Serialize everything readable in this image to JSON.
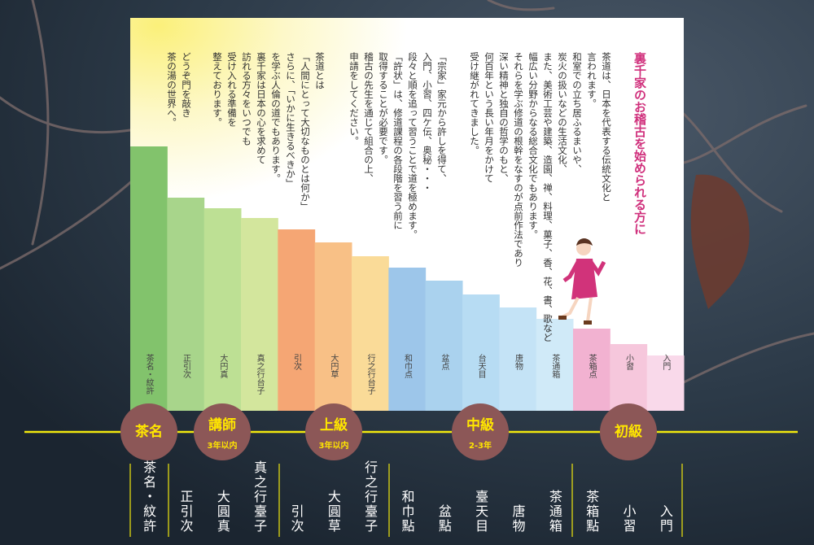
{
  "heading": "裏千家のお稽古を始められる方に",
  "paragraphs": [
    [
      "茶道は、日本を代表する伝統文化と",
      "言われます。",
      "和室での立ち居ふるまいや、",
      "炭火の扱いなどの生活文化、",
      "また、美術工芸や建築、造園、禅、料理、菓子、香、花、書、歌など",
      "幅広い分野からなる総合文化でもあります。",
      "それらを学ぶ修道の根幹をなすのが点前作法であり",
      "深い精神と独自の哲学のもと、",
      "何百年という長い年月をかけて",
      "受け継がれてきました。"
    ],
    [
      "「宗家」家元から許しを得て、",
      "入門、小習、四ケ伝、奥秘・・・",
      "段々と順を追って習うことで道を極めます。",
      "「許状」は、修道課程の各段階を習う前に",
      "取得することが必要です。",
      "稽古の先生を通じて組合の上、",
      "申請をしてください。"
    ],
    [
      "茶道とは",
      "「人間にとって大切なものとは何か」",
      "さらに、「いかに生きるべきか」",
      "を学ぶ人倫の道でもあります。",
      "裏千家は日本の心を求めて",
      "訪れる方々をいつでも",
      "受け入れる準備を",
      "整えております。"
    ],
    [
      "どうぞ門を敲き",
      "茶の湯の世界へ。"
    ]
  ],
  "steps": [
    {
      "label": "茶名・紋許",
      "name": "茶名・紋許"
    },
    {
      "label": "正引次",
      "name": "正引次"
    },
    {
      "label": "大円真",
      "name": "大圓真"
    },
    {
      "label": "真之行台子",
      "name": "真之行臺子"
    },
    {
      "label": "引次",
      "name": "引次"
    },
    {
      "label": "大円草",
      "name": "大圓草"
    },
    {
      "label": "行之行台子",
      "name": "行之行臺子"
    },
    {
      "label": "和巾点",
      "name": "和巾點"
    },
    {
      "label": "盆点",
      "name": "盆點"
    },
    {
      "label": "台天目",
      "name": "臺天目"
    },
    {
      "label": "唐物",
      "name": "唐物"
    },
    {
      "label": "茶通箱",
      "name": "茶通箱"
    },
    {
      "label": "茶箱点",
      "name": "茶箱點"
    },
    {
      "label": "小習",
      "name": "小習"
    },
    {
      "label": "入門",
      "name": "入門"
    }
  ],
  "levels": [
    {
      "title": "茶名"
    },
    {
      "title": "講師",
      "note": "3年以内"
    },
    {
      "title": "上級",
      "note": "3年以内"
    },
    {
      "title": "中級",
      "note": "2-3年"
    },
    {
      "title": "初級"
    }
  ]
}
